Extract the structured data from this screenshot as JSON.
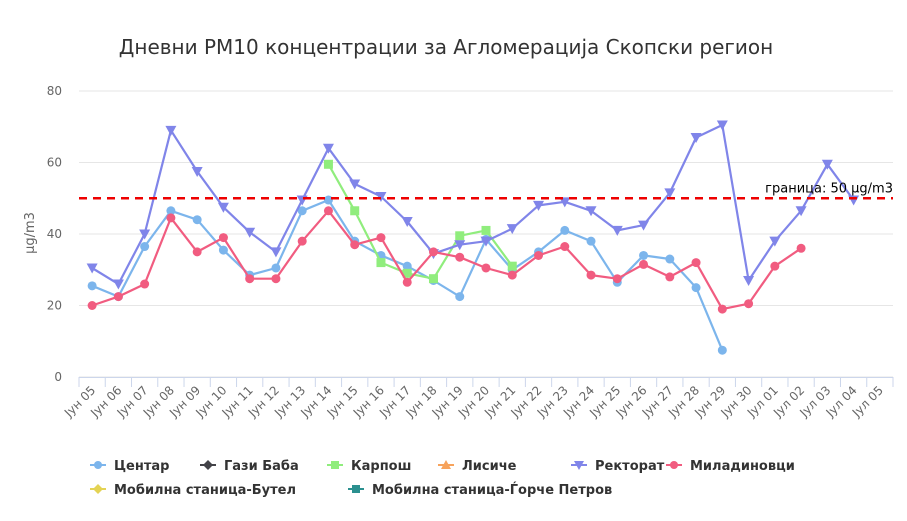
{
  "chart_data": {
    "type": "line",
    "title": "Дневни PM10 концентрации за Агломерација Скопски регион",
    "ylabel": "µg/m3",
    "xlabel": "",
    "ylim": [
      0,
      80
    ],
    "yticks": [
      0,
      20,
      40,
      60,
      80
    ],
    "grid": true,
    "legend_position": "bottom",
    "categories": [
      "Јун 05",
      "Јун 06",
      "Јун 07",
      "Јун 08",
      "Јун 09",
      "Јун 10",
      "Јун 11",
      "Јун 12",
      "Јун 13",
      "Јун 14",
      "Јун 15",
      "Јун 16",
      "Јун 17",
      "Јун 18",
      "Јун 19",
      "Јун 20",
      "Јун 21",
      "Јун 22",
      "Јун 23",
      "Јун 24",
      "Јун 25",
      "Јун 26",
      "Јун 27",
      "Јун 28",
      "Јун 29",
      "Јун 30",
      "Јул 01",
      "Јул 02",
      "Јул 03",
      "Јул 04",
      "Јул 05"
    ],
    "threshold": {
      "value": 50,
      "label": "граница: 50 µg/m3",
      "color": "#ee0000"
    },
    "series": [
      {
        "name": "Центар",
        "color": "#7cb5ec",
        "marker": "circle",
        "values": [
          25.5,
          22.5,
          36.5,
          46.5,
          44,
          35.5,
          28.5,
          30.5,
          46.5,
          49.5,
          38,
          34,
          31,
          27,
          22.5,
          38.5,
          30,
          35,
          41,
          38,
          26.5,
          34,
          33,
          25,
          7.5,
          null,
          null,
          null,
          null,
          null,
          null
        ]
      },
      {
        "name": "Гази Баба",
        "color": "#434348",
        "marker": "diamond",
        "values": [
          null,
          null,
          null,
          null,
          null,
          null,
          null,
          null,
          null,
          null,
          null,
          null,
          null,
          null,
          null,
          null,
          null,
          null,
          null,
          null,
          null,
          null,
          null,
          null,
          null,
          null,
          null,
          null,
          null,
          null,
          null
        ]
      },
      {
        "name": "Карпош",
        "color": "#90ed7d",
        "marker": "square",
        "values": [
          null,
          null,
          null,
          null,
          null,
          null,
          null,
          null,
          null,
          59.5,
          46.5,
          32,
          29,
          27.5,
          39.5,
          41,
          31,
          null,
          null,
          null,
          null,
          null,
          null,
          null,
          null,
          null,
          null,
          null,
          null,
          null,
          null
        ]
      },
      {
        "name": "Лисиче",
        "color": "#f7a35c",
        "marker": "triangle",
        "values": [
          null,
          null,
          null,
          null,
          null,
          null,
          null,
          null,
          null,
          null,
          null,
          null,
          null,
          null,
          null,
          null,
          null,
          null,
          null,
          null,
          null,
          null,
          null,
          null,
          null,
          null,
          null,
          null,
          null,
          null,
          null
        ]
      },
      {
        "name": "Ректорат",
        "color": "#8085e9",
        "marker": "triangle-down",
        "values": [
          30.5,
          26,
          40,
          69,
          57.5,
          47.5,
          40.5,
          35,
          49.5,
          64,
          54,
          50.5,
          43.5,
          34.5,
          37,
          38,
          41.5,
          48,
          49,
          46.5,
          41,
          42.5,
          51.5,
          67,
          70.5,
          27,
          38,
          46.5,
          59.5,
          49.5,
          null
        ]
      },
      {
        "name": "Миладиновци",
        "color": "#f15c80",
        "marker": "circle",
        "values": [
          20,
          22.5,
          26,
          44.5,
          35,
          39,
          27.5,
          27.5,
          38,
          46.5,
          37,
          39,
          26.5,
          35,
          33.5,
          30.5,
          28.5,
          34,
          36.5,
          28.5,
          27.5,
          31.5,
          28,
          32,
          19,
          20.5,
          31,
          36,
          null,
          null,
          null
        ]
      },
      {
        "name": "Мобилна станица-Бутел",
        "color": "#e4d354",
        "marker": "diamond",
        "values": [
          null,
          null,
          null,
          null,
          null,
          null,
          null,
          null,
          null,
          null,
          null,
          null,
          null,
          null,
          null,
          null,
          null,
          null,
          null,
          null,
          null,
          null,
          null,
          null,
          null,
          null,
          null,
          null,
          null,
          null,
          null
        ]
      },
      {
        "name": "Мобилна станица-Ѓорче Петров",
        "color": "#2b908f",
        "marker": "square",
        "values": [
          null,
          null,
          null,
          null,
          null,
          null,
          null,
          null,
          null,
          null,
          null,
          null,
          null,
          null,
          null,
          null,
          null,
          null,
          null,
          null,
          null,
          null,
          null,
          null,
          null,
          null,
          null,
          null,
          null,
          null,
          null
        ]
      }
    ]
  }
}
